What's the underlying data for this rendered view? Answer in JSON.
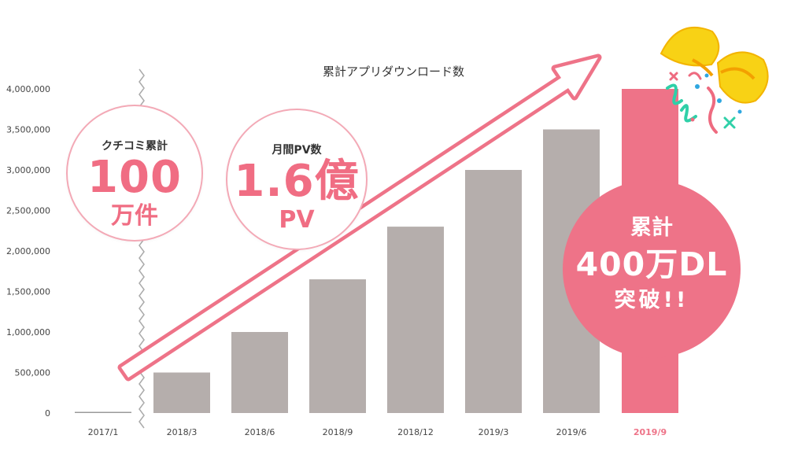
{
  "chart_data": {
    "type": "bar",
    "title": "累計アプリダウンロード数",
    "categories": [
      "2017/1",
      "2018/3",
      "2018/6",
      "2018/9",
      "2018/12",
      "2019/3",
      "2019/6",
      "2019/9"
    ],
    "values": [
      0,
      500000,
      1000000,
      1650000,
      2300000,
      3000000,
      3500000,
      4000000
    ],
    "yticks": [
      "0",
      "500,000",
      "1,000,000",
      "1,500,000",
      "2,000,000",
      "2,500,000",
      "3,000,000",
      "3,500,000",
      "4,000,000"
    ],
    "ylim": [
      0,
      4000000
    ],
    "axis_break": "after 2017/1",
    "highlight_category": "2019/9",
    "grid": false,
    "colors": {
      "bar": "#b5aeac",
      "highlight": "#ee7388",
      "highlight_label": "#ee7388",
      "arrow": "#ee7388",
      "axis_text": "#444444"
    }
  },
  "stat_reviews": {
    "caption": "クチコミ累計",
    "value": "100",
    "unit": "万件"
  },
  "stat_pageviews": {
    "caption": "月間PV数",
    "value": "1.6億",
    "unit": "PV"
  },
  "badge": {
    "line1": "累計",
    "line2": "400万DL",
    "line3": "突破!!"
  },
  "decoration": {
    "icon": "confetti-party-popper-icon"
  }
}
